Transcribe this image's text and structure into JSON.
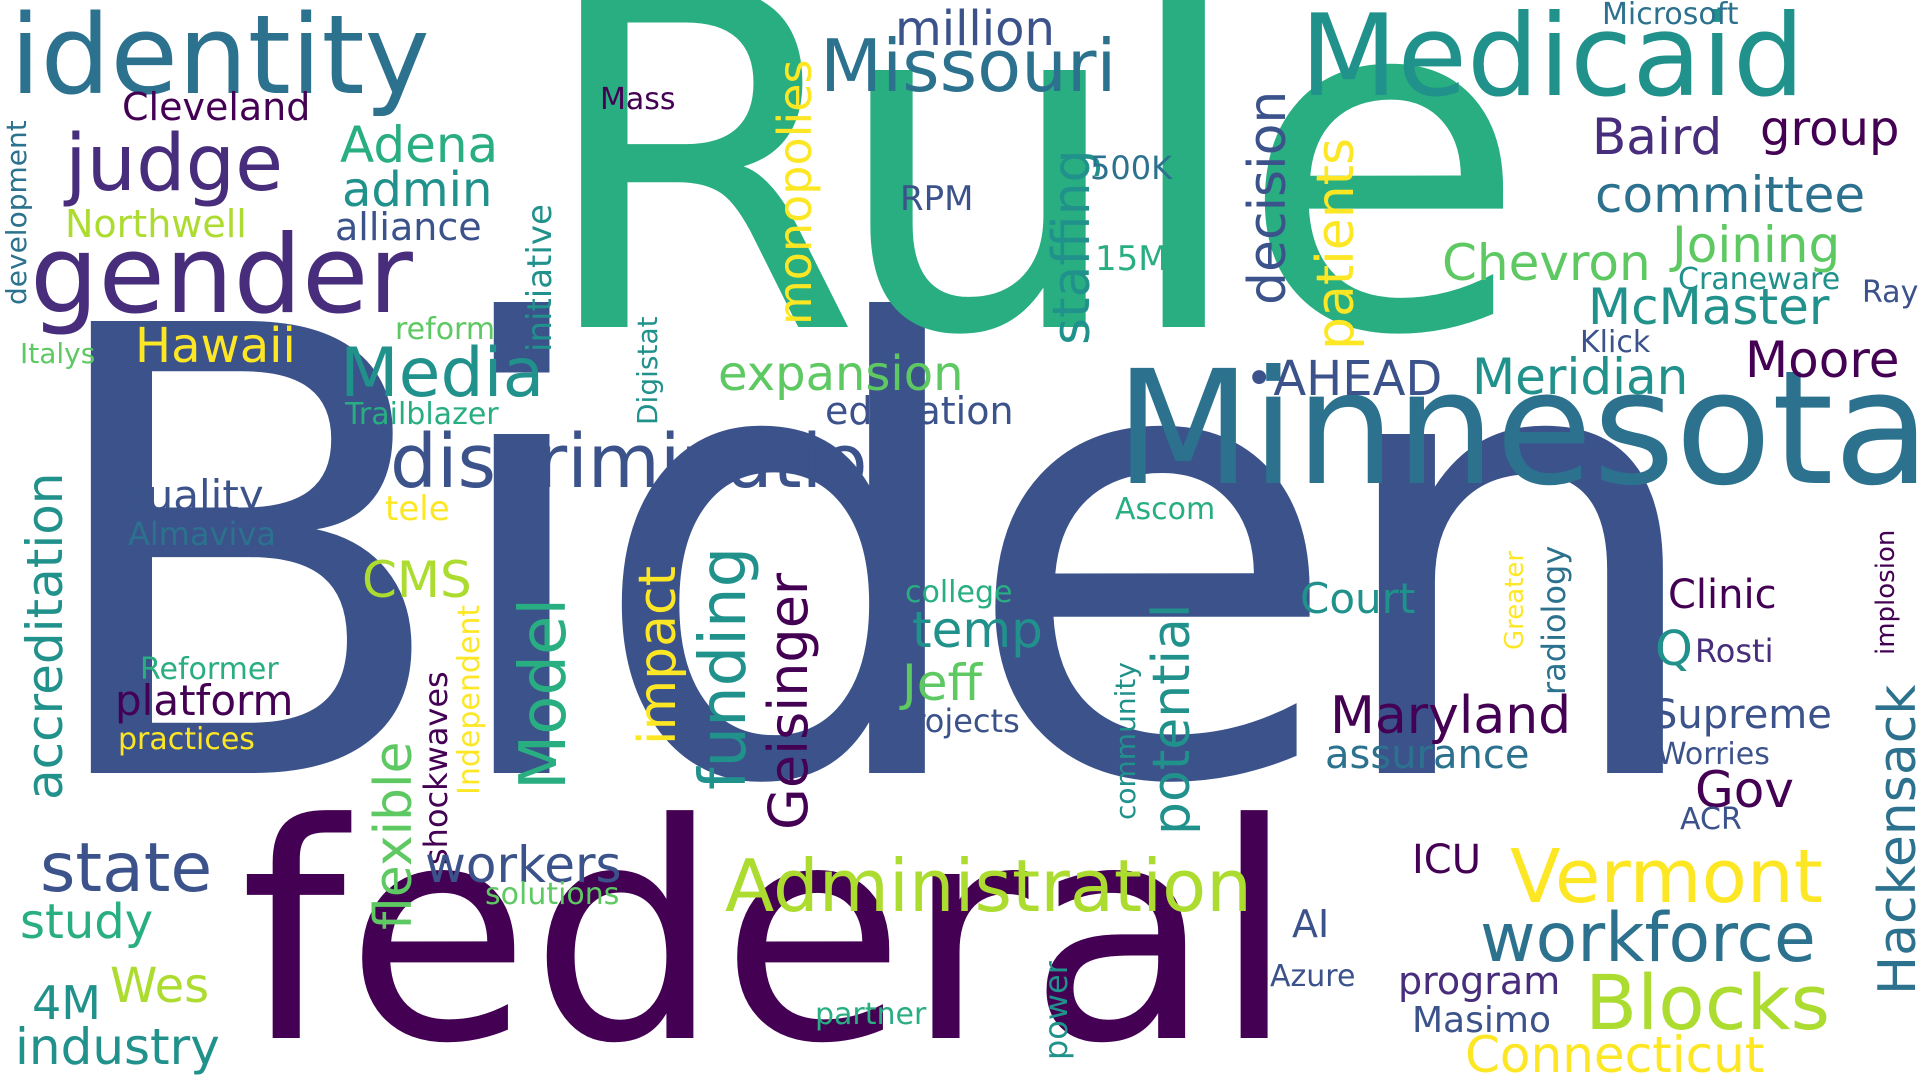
{
  "palette": {
    "dark_purple": "#440154",
    "indigo": "#472d7b",
    "slate_blue": "#3b528b",
    "steel_blue": "#2c728e",
    "teal": "#21918c",
    "sea_green": "#28ae80",
    "green": "#5ec962",
    "lime": "#addc30",
    "yellow": "#fde725"
  },
  "words": [
    {
      "key": "biden",
      "text": "Biden"
    },
    {
      "key": "rule",
      "text": "Rule"
    },
    {
      "key": "federal",
      "text": "federal"
    },
    {
      "key": "minnesota",
      "text": "Minnesota"
    },
    {
      "key": "medicaid",
      "text": "Medicaid"
    },
    {
      "key": "identity",
      "text": "identity"
    },
    {
      "key": "gender",
      "text": "gender"
    },
    {
      "key": "discrimination",
      "text": "discrimination"
    },
    {
      "key": "administration",
      "text": "Administration"
    },
    {
      "key": "missouri",
      "text": "Missouri"
    },
    {
      "key": "judge",
      "text": "judge"
    },
    {
      "key": "media",
      "text": "Media"
    },
    {
      "key": "vermont",
      "text": "Vermont"
    },
    {
      "key": "blocks",
      "text": "Blocks"
    },
    {
      "key": "workforce",
      "text": "workforce"
    },
    {
      "key": "state",
      "text": "state"
    },
    {
      "key": "model",
      "text": "Model"
    },
    {
      "key": "funding",
      "text": "funding"
    },
    {
      "key": "geisinger",
      "text": "Geisinger"
    },
    {
      "key": "maryland",
      "text": "Maryland"
    },
    {
      "key": "accreditation",
      "text": "accreditation"
    },
    {
      "key": "flexible",
      "text": "flexible"
    },
    {
      "key": "potential",
      "text": "potential"
    },
    {
      "key": "impact",
      "text": "impact"
    },
    {
      "key": "staffing",
      "text": "staffing"
    },
    {
      "key": "decision",
      "text": "decision"
    },
    {
      "key": "patients",
      "text": "patients"
    },
    {
      "key": "hackensack",
      "text": "Hackensack"
    },
    {
      "key": "expansion",
      "text": "expansion"
    },
    {
      "key": "monopolies",
      "text": "monopolies"
    },
    {
      "key": "chevron",
      "text": "Chevron"
    },
    {
      "key": "mcmaster",
      "text": "McMaster"
    },
    {
      "key": "meridian",
      "text": "Meridian"
    },
    {
      "key": "moore",
      "text": "Moore"
    },
    {
      "key": "joining",
      "text": "Joining"
    },
    {
      "key": "committee",
      "text": "committee"
    },
    {
      "key": "baird",
      "text": "Baird"
    },
    {
      "key": "group",
      "text": "group"
    },
    {
      "key": "ahead",
      "text": "•AHEAD"
    },
    {
      "key": "connecticut",
      "text": "Connecticut"
    },
    {
      "key": "workers",
      "text": "workers"
    },
    {
      "key": "industry",
      "text": "industry"
    },
    {
      "key": "study",
      "text": "study"
    },
    {
      "key": "wes",
      "text": "Wes"
    },
    {
      "key": "4m",
      "text": "4M"
    },
    {
      "key": "jeff",
      "text": "Jeff"
    },
    {
      "key": "temp",
      "text": "temp"
    },
    {
      "key": "cms",
      "text": "CMS"
    },
    {
      "key": "gov",
      "text": "Gov"
    },
    {
      "key": "hawaii",
      "text": "Hawaii"
    },
    {
      "key": "adena",
      "text": "Adena"
    },
    {
      "key": "admin",
      "text": "admin"
    },
    {
      "key": "million",
      "text": "million"
    },
    {
      "key": "assurance",
      "text": "assurance"
    },
    {
      "key": "program",
      "text": "program"
    },
    {
      "key": "masimo",
      "text": "Masimo"
    },
    {
      "key": "icu",
      "text": "ICU"
    },
    {
      "key": "ai",
      "text": "AI"
    },
    {
      "key": "court",
      "text": "Court"
    },
    {
      "key": "clinic",
      "text": "Clinic"
    },
    {
      "key": "supreme",
      "text": "Supreme"
    },
    {
      "key": "q",
      "text": "Q"
    },
    {
      "key": "platform",
      "text": "platform"
    },
    {
      "key": "quality",
      "text": "quality"
    },
    {
      "key": "cleveland",
      "text": "Cleveland"
    },
    {
      "key": "northwell",
      "text": "Northwell"
    },
    {
      "key": "alliance",
      "text": "alliance"
    },
    {
      "key": "education",
      "text": "education"
    },
    {
      "key": "shockwaves",
      "text": "shockwaves"
    },
    {
      "key": "independent",
      "text": "Independent"
    },
    {
      "key": "initiative",
      "text": "initiative"
    },
    {
      "key": "radiology",
      "text": "radiology"
    },
    {
      "key": "community",
      "text": "community"
    },
    {
      "key": "power",
      "text": "power"
    },
    {
      "key": "development",
      "text": "development"
    },
    {
      "key": "digistat",
      "text": "Digistat"
    },
    {
      "key": "greater",
      "text": "Greater"
    },
    {
      "key": "implosion",
      "text": "implosion"
    },
    {
      "key": "rpm",
      "text": "RPM"
    },
    {
      "key": "k500",
      "text": "500K"
    },
    {
      "key": "m15",
      "text": "15M"
    },
    {
      "key": "mass",
      "text": "Mass"
    },
    {
      "key": "microsoft",
      "text": "Microsoft"
    },
    {
      "key": "craneware",
      "text": "Craneware"
    },
    {
      "key": "ray",
      "text": "Ray"
    },
    {
      "key": "klick",
      "text": "Klick"
    },
    {
      "key": "reform",
      "text": "reform"
    },
    {
      "key": "italys",
      "text": "Italys"
    },
    {
      "key": "trailblazer",
      "text": "Trailblazer"
    },
    {
      "key": "tele",
      "text": "tele"
    },
    {
      "key": "almaviva",
      "text": "Almaviva"
    },
    {
      "key": "ascom",
      "text": "Ascom"
    },
    {
      "key": "college",
      "text": "college"
    },
    {
      "key": "projects",
      "text": "projects"
    },
    {
      "key": "reformer",
      "text": "Reformer"
    },
    {
      "key": "practices",
      "text": "practices"
    },
    {
      "key": "rosti",
      "text": "Rosti"
    },
    {
      "key": "worries",
      "text": "Worries"
    },
    {
      "key": "acr",
      "text": "ACR"
    },
    {
      "key": "solutions",
      "text": "solutions"
    },
    {
      "key": "azure",
      "text": "Azure"
    },
    {
      "key": "partner",
      "text": "partner"
    }
  ]
}
